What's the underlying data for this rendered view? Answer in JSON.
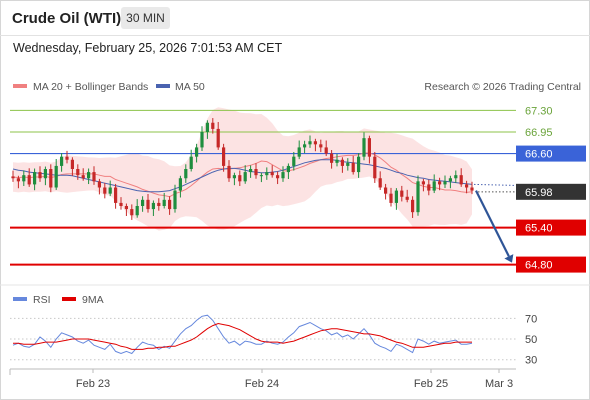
{
  "header": {
    "title": "Crude Oil (WTI)",
    "timeframe": "30 MIN"
  },
  "timestamp": "Wednesday, February 25, 2026 7:01:53 AM CET",
  "legend": {
    "ma20_label": "MA 20 + Bollinger Bands",
    "ma50_label": "MA 50",
    "credit": "Research © 2026 Trading Central"
  },
  "colors": {
    "up": "#1e8e3e",
    "down": "#c62828",
    "ma20": "#f08080",
    "ma50": "#4a63b0",
    "band": "#fbd9d9",
    "target": "#8cc34a",
    "pivot": "#3a63d8",
    "support": "#e00000",
    "rsi": "#6688dd",
    "rsi_ma": "#e00000",
    "last": "#333333"
  },
  "chart_data": [
    {
      "type": "candlestick",
      "title": "Crude Oil (WTI)",
      "timeframe": "30 MIN",
      "x_ticks": [
        "Feb 23",
        "Feb 24",
        "Feb 25",
        "Mar 3"
      ],
      "ylim": [
        64.55,
        67.55
      ],
      "levels": [
        {
          "value": 67.3,
          "label": "67.30",
          "kind": "resistance"
        },
        {
          "value": 66.95,
          "label": "66.95",
          "kind": "resistance"
        },
        {
          "value": 66.6,
          "label": "66.60",
          "kind": "pivot"
        },
        {
          "value": 65.4,
          "label": "65.40",
          "kind": "support"
        },
        {
          "value": 64.8,
          "label": "64.80",
          "kind": "support"
        }
      ],
      "last_price": {
        "value": 65.98,
        "label": "65.98"
      },
      "indicators": [
        "MA 20 + Bollinger Bands",
        "MA 50"
      ],
      "series": [
        {
          "name": "close",
          "values": [
            66.2,
            66.15,
            66.25,
            66.1,
            66.3,
            66.2,
            66.35,
            66.05,
            66.4,
            66.55,
            66.5,
            66.35,
            66.25,
            66.2,
            66.3,
            66.15,
            66.05,
            65.95,
            66.05,
            65.8,
            65.75,
            65.7,
            65.6,
            65.75,
            65.85,
            65.7,
            65.8,
            65.75,
            65.85,
            65.7,
            66.0,
            66.2,
            66.35,
            66.55,
            66.7,
            66.95,
            67.1,
            67.0,
            66.7,
            66.4,
            66.2,
            66.25,
            66.15,
            66.3,
            66.35,
            66.25,
            66.25,
            66.3,
            66.25,
            66.2,
            66.3,
            66.4,
            66.55,
            66.7,
            66.75,
            66.8,
            66.75,
            66.7,
            66.6,
            66.45,
            66.5,
            66.4,
            66.45,
            66.3,
            66.55,
            66.85,
            66.55,
            66.2,
            66.05,
            65.95,
            65.8,
            66.0,
            65.9,
            65.85,
            65.65,
            66.15,
            66.1,
            66.0,
            66.15,
            66.1,
            66.15,
            66.2,
            66.25,
            66.1,
            66.05,
            66.0
          ]
        },
        {
          "name": "MA 20",
          "values": [
            66.22,
            66.21,
            66.22,
            66.21,
            66.22,
            66.22,
            66.23,
            66.21,
            66.23,
            66.26,
            66.27,
            66.27,
            66.27,
            66.27,
            66.27,
            66.27,
            66.25,
            66.23,
            66.23,
            66.18,
            66.15,
            66.12,
            66.09,
            66.06,
            66.02,
            65.99,
            65.96,
            65.93,
            65.92,
            65.9,
            65.95,
            65.98,
            66.02,
            66.08,
            66.15,
            66.23,
            66.3,
            66.35,
            66.36,
            66.35,
            66.35,
            66.36,
            66.37,
            66.39,
            66.41,
            66.44,
            66.48,
            66.47,
            66.42,
            66.37,
            66.32,
            66.32,
            66.34,
            66.37,
            66.4,
            66.44,
            66.47,
            66.5,
            66.52,
            66.53,
            66.55,
            66.56,
            66.57,
            66.57,
            66.58,
            66.61,
            66.61,
            66.58,
            66.53,
            66.46,
            66.38,
            66.33,
            66.26,
            66.2,
            66.13,
            66.1,
            66.07,
            66.05,
            66.05,
            66.03,
            66.01,
            66.01,
            66.0,
            65.98,
            65.97,
            65.98
          ]
        },
        {
          "name": "MA 50",
          "values": [
            66.35,
            66.33,
            66.32,
            66.3,
            66.29,
            66.28,
            66.27,
            66.26,
            66.25,
            66.25,
            66.25,
            66.24,
            66.22,
            66.2,
            66.18,
            66.16,
            66.14,
            66.12,
            66.1,
            66.08,
            66.06,
            66.04,
            66.02,
            66.0,
            65.99,
            65.98,
            65.98,
            65.98,
            65.99,
            66.0,
            66.03,
            66.06,
            66.1,
            66.14,
            66.18,
            66.22,
            66.26,
            66.3,
            66.33,
            66.35,
            66.36,
            66.36,
            66.35,
            66.33,
            66.31,
            66.3,
            66.29,
            66.29,
            66.3,
            66.31,
            66.33,
            66.36,
            66.39,
            66.42,
            66.45,
            66.47,
            66.49,
            66.5,
            66.5,
            66.5,
            66.49,
            66.47,
            66.46,
            66.45,
            66.44,
            66.43,
            66.42,
            66.4,
            66.38,
            66.36,
            66.33,
            66.3,
            66.28,
            66.25,
            66.23,
            66.21,
            66.2,
            66.18,
            66.17,
            66.16,
            66.15,
            66.14,
            66.13,
            66.12,
            66.11,
            66.1
          ]
        }
      ]
    },
    {
      "type": "line",
      "title": "RSI",
      "ylim": [
        22,
        80
      ],
      "y_ticks": [
        70,
        50,
        30
      ],
      "series": [
        {
          "name": "RSI",
          "values": [
            44,
            46,
            43,
            42,
            45,
            52,
            48,
            42,
            50,
            56,
            54,
            52,
            48,
            46,
            49,
            44,
            42,
            40,
            45,
            38,
            36,
            38,
            36,
            42,
            47,
            45,
            44,
            40,
            43,
            41,
            48,
            55,
            60,
            63,
            68,
            72,
            73,
            68,
            60,
            52,
            46,
            48,
            44,
            48,
            47,
            45,
            45,
            48,
            46,
            45,
            47,
            52,
            56,
            62,
            64,
            66,
            63,
            60,
            58,
            54,
            56,
            52,
            54,
            50,
            55,
            60,
            54,
            46,
            43,
            41,
            38,
            45,
            43,
            40,
            37,
            50,
            48,
            45,
            48,
            46,
            47,
            48,
            49,
            45,
            45,
            46
          ]
        },
        {
          "name": "9MA",
          "values": [
            46,
            46,
            45,
            45,
            45,
            46,
            47,
            47,
            47,
            48,
            49,
            50,
            50,
            50,
            50,
            49,
            48,
            47,
            46,
            45,
            43,
            42,
            40,
            40,
            40,
            41,
            41,
            42,
            42,
            43,
            43,
            45,
            47,
            49,
            52,
            56,
            60,
            63,
            65,
            64,
            63,
            61,
            59,
            56,
            53,
            50,
            48,
            47,
            47,
            47,
            46,
            47,
            48,
            50,
            52,
            54,
            56,
            58,
            59,
            60,
            60,
            59,
            58,
            57,
            56,
            55,
            55,
            54,
            53,
            51,
            49,
            47,
            46,
            44,
            42,
            42,
            42,
            43,
            44,
            45,
            46,
            46,
            47,
            47,
            47,
            47
          ]
        }
      ]
    }
  ]
}
